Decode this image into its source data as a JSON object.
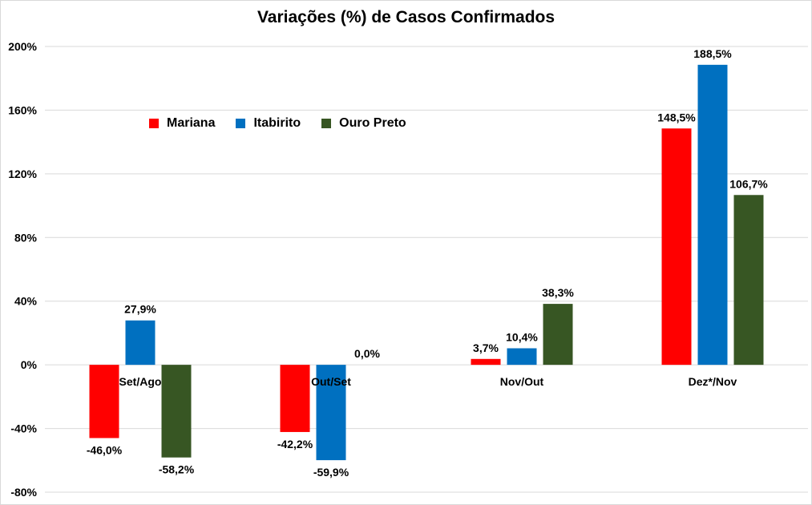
{
  "chart_data": {
    "type": "bar",
    "title": "Variações (%) de Casos Confirmados",
    "xlabel": "",
    "ylabel": "",
    "categories": [
      "Set/Ago",
      "Out/Set",
      "Nov/Out",
      "Dez*/Nov"
    ],
    "series": [
      {
        "name": "Mariana",
        "color": "#ff0000",
        "values": [
          -46.0,
          -42.2,
          3.7,
          148.5
        ],
        "labels": [
          "-46,0%",
          "-42,2%",
          "3,7%",
          "148,5%"
        ]
      },
      {
        "name": "Itabirito",
        "color": "#0070c0",
        "values": [
          27.9,
          -59.9,
          10.4,
          188.5
        ],
        "labels": [
          "27,9%",
          "-59,9%",
          "10,4%",
          "188,5%"
        ]
      },
      {
        "name": "Ouro Preto",
        "color": "#375623",
        "values": [
          -58.2,
          0.0,
          38.3,
          106.7
        ],
        "labels": [
          "-58,2%",
          "0,0%",
          "38,3%",
          "106,7%"
        ]
      }
    ],
    "ylim": [
      -80,
      200
    ],
    "yticks": [
      200,
      160,
      120,
      80,
      40,
      0,
      -40,
      -80
    ],
    "ytick_labels": [
      "200%",
      "160%",
      "120%",
      "80%",
      "40%",
      "0%",
      "-40%",
      "-80%"
    ],
    "grid": true,
    "legend_position": "top-left"
  }
}
